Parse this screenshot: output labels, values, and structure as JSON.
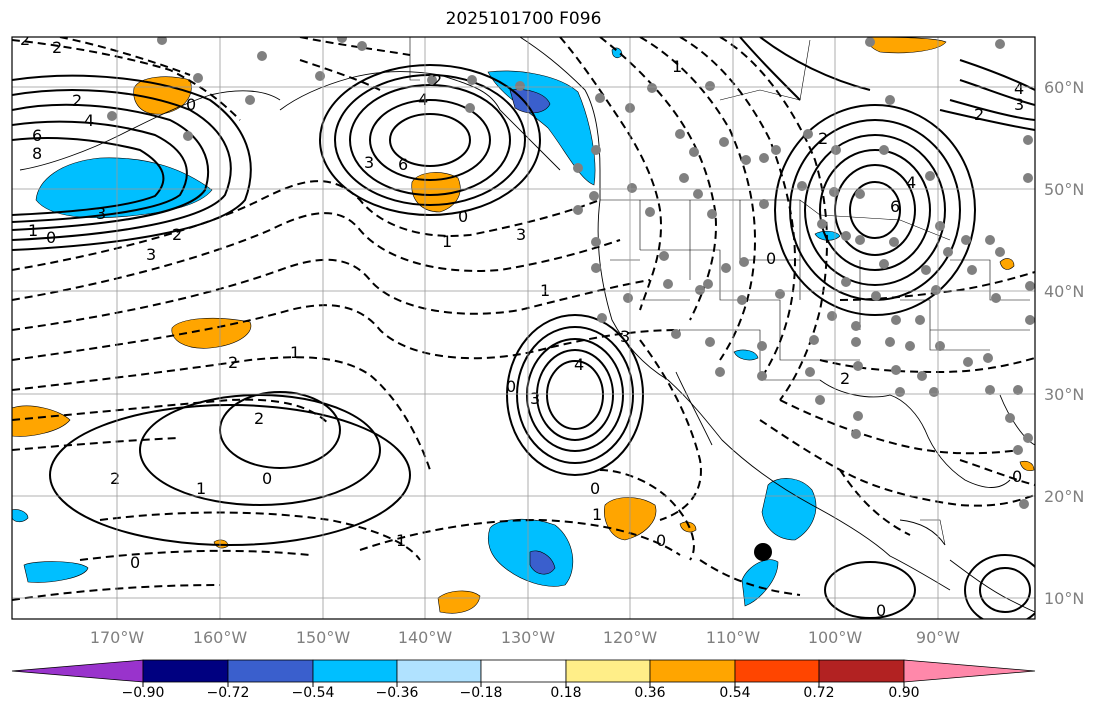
{
  "title": "2025101700 F096",
  "axes": {
    "latitude_labels": [
      "60°N",
      "50°N",
      "40°N",
      "30°N",
      "20°N",
      "10°N"
    ],
    "longitude_labels": [
      "170°W",
      "160°W",
      "150°W",
      "140°W",
      "130°W",
      "120°W",
      "110°W",
      "100°W",
      "90°W"
    ]
  },
  "colorbar": {
    "ticks": [
      "−0.90",
      "−0.72",
      "−0.54",
      "−0.36",
      "−0.18",
      "0.18",
      "0.36",
      "0.54",
      "0.72",
      "0.90"
    ],
    "colors": [
      "#9933cc",
      "#000080",
      "#3a5fcd",
      "#00bfff",
      "#b0e2ff",
      "#ffffff",
      "#ffee88",
      "#ffa500",
      "#ff4500",
      "#b22222",
      "#ff88aa"
    ]
  },
  "contour_labels": {
    "l1": "2",
    "l2": "2",
    "l3": "4",
    "l4": "6",
    "l5": "8",
    "l6": "0",
    "l7": "3",
    "l8": "0",
    "l9": "1",
    "l10": "2",
    "l11": "3",
    "l12": "2",
    "l13": "4",
    "l14": "3",
    "l15": "6",
    "l16": "0",
    "l17": "1",
    "l18": "3",
    "l19": "1",
    "l20": "2",
    "l21": "1",
    "l22": "2",
    "l23": "2",
    "l24": "2",
    "l25": "1",
    "l26": "0",
    "l27": "0",
    "l28": "3",
    "l29": "4",
    "l30": "3",
    "l31": "0",
    "l32": "1",
    "l33": "0",
    "l34": "1",
    "l35": "0",
    "l36": "2",
    "l37": "4",
    "l38": "3",
    "l39": "2",
    "l40": "2",
    "l41": "4",
    "l42": "6",
    "l43": "0",
    "l44": "2",
    "l45": "1",
    "l46": "0",
    "l47": "0"
  }
}
